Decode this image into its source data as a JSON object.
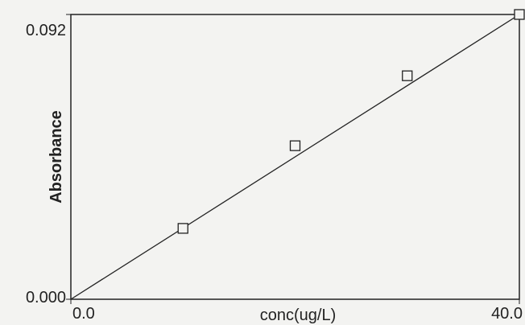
{
  "chart_data": {
    "type": "scatter",
    "xlabel": "conc(ug/L)",
    "ylabel": "Absorbance",
    "xlim": [
      0,
      40
    ],
    "ylim": [
      0,
      0.092
    ],
    "xticks": [
      {
        "value": 0,
        "label": "0.0"
      },
      {
        "value": 40,
        "label": "40.0"
      }
    ],
    "yticks": [
      {
        "value": 0,
        "label": "0.000"
      },
      {
        "value": 0.092,
        "label": "0.092"
      }
    ],
    "series": [
      {
        "mode": "markers",
        "color": "#222222",
        "x": [
          10,
          20,
          30,
          40
        ],
        "values": [
          0.0229,
          0.0496,
          0.0722,
          0.092
        ]
      },
      {
        "mode": "line",
        "color": "#222222",
        "x": [
          0,
          40
        ],
        "values": [
          0,
          0.092
        ]
      }
    ]
  }
}
